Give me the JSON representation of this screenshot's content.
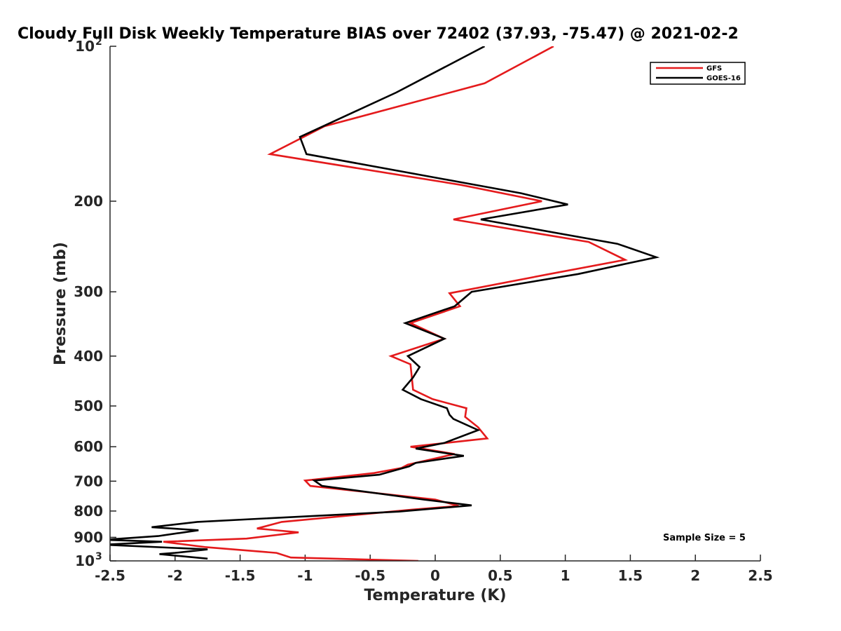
{
  "chart_data": {
    "type": "line",
    "title": "Cloudy Full Disk Weekly Temperature BIAS over 72402 (37.93, -75.47) @ 2021-02-2",
    "xlabel": "Temperature (K)",
    "ylabel": "Pressure (mb)",
    "xlim": [
      -2.5,
      2.5
    ],
    "ylim": [
      1000,
      100
    ],
    "y_scale": "log",
    "x_ticks": [
      "-2.5",
      "-2",
      "-1.5",
      "-1",
      "-0.5",
      "0",
      "0.5",
      "1",
      "1.5",
      "2",
      "2.5"
    ],
    "y_ticks": [
      {
        "value": 100,
        "base": "10",
        "exp": "2"
      },
      {
        "value": 200,
        "label": "200"
      },
      {
        "value": 300,
        "label": "300"
      },
      {
        "value": 400,
        "label": "400"
      },
      {
        "value": 500,
        "label": "500"
      },
      {
        "value": 600,
        "label": "600"
      },
      {
        "value": 700,
        "label": "700"
      },
      {
        "value": 800,
        "label": "800"
      },
      {
        "value": 900,
        "label": "900"
      },
      {
        "value": 1000,
        "base": "10",
        "exp": "3"
      }
    ],
    "legend_position": "top-right",
    "annotation": "Sample Size = 5",
    "series": [
      {
        "name": "GFS",
        "color": "#e41a1c",
        "points": [
          [
            0.91,
            100
          ],
          [
            0.38,
            118
          ],
          [
            -0.85,
            143
          ],
          [
            -1.27,
            162
          ],
          [
            0.2,
            186
          ],
          [
            0.82,
            200
          ],
          [
            0.14,
            217
          ],
          [
            1.18,
            240
          ],
          [
            1.46,
            260
          ],
          [
            0.88,
            277
          ],
          [
            0.11,
            302
          ],
          [
            0.19,
            320
          ],
          [
            -0.19,
            345
          ],
          [
            0.07,
            370
          ],
          [
            -0.34,
            400
          ],
          [
            -0.19,
            415
          ],
          [
            -0.18,
            440
          ],
          [
            -0.17,
            465
          ],
          [
            -0.02,
            485
          ],
          [
            0.24,
            505
          ],
          [
            0.23,
            525
          ],
          [
            0.33,
            550
          ],
          [
            0.4,
            578
          ],
          [
            0.08,
            590
          ],
          [
            -0.19,
            600
          ],
          [
            0.15,
            620
          ],
          [
            -0.21,
            650
          ],
          [
            -0.26,
            660
          ],
          [
            -0.47,
            675
          ],
          [
            -1.0,
            698
          ],
          [
            -0.96,
            715
          ],
          [
            0.0,
            760
          ],
          [
            0.18,
            782
          ],
          [
            -0.18,
            795
          ],
          [
            -1.18,
            840
          ],
          [
            -1.37,
            865
          ],
          [
            -1.05,
            880
          ],
          [
            -1.45,
            905
          ],
          [
            -2.09,
            918
          ],
          [
            -1.77,
            940
          ],
          [
            -1.22,
            965
          ],
          [
            -1.11,
            985
          ],
          [
            -0.13,
            1000
          ]
        ]
      },
      {
        "name": "GOES-16",
        "color": "#000000",
        "points": [
          [
            0.38,
            100
          ],
          [
            -0.3,
            123
          ],
          [
            -1.04,
            150
          ],
          [
            -0.99,
            162
          ],
          [
            0.66,
            193
          ],
          [
            1.02,
            203
          ],
          [
            0.35,
            217
          ],
          [
            1.4,
            242
          ],
          [
            1.7,
            257
          ],
          [
            1.1,
            277
          ],
          [
            0.28,
            300
          ],
          [
            0.15,
            320
          ],
          [
            -0.23,
            345
          ],
          [
            0.07,
            370
          ],
          [
            -0.21,
            400
          ],
          [
            -0.12,
            420
          ],
          [
            -0.17,
            440
          ],
          [
            -0.25,
            465
          ],
          [
            -0.11,
            485
          ],
          [
            0.09,
            505
          ],
          [
            0.11,
            520
          ],
          [
            0.14,
            530
          ],
          [
            0.33,
            557
          ],
          [
            0.07,
            590
          ],
          [
            -0.15,
            605
          ],
          [
            0.22,
            625
          ],
          [
            -0.15,
            645
          ],
          [
            -0.2,
            655
          ],
          [
            -0.43,
            680
          ],
          [
            -0.93,
            698
          ],
          [
            -0.87,
            715
          ],
          [
            -0.09,
            760
          ],
          [
            0.28,
            780
          ],
          [
            -0.28,
            802
          ],
          [
            -1.83,
            840
          ],
          [
            -2.18,
            860
          ],
          [
            -1.82,
            872
          ],
          [
            -2.13,
            895
          ],
          [
            -2.55,
            910
          ],
          [
            -2.1,
            918
          ],
          [
            -2.55,
            930
          ],
          [
            -1.75,
            950
          ],
          [
            -2.0,
            965
          ],
          [
            -2.12,
            970
          ],
          [
            -1.75,
            990
          ]
        ]
      }
    ]
  }
}
